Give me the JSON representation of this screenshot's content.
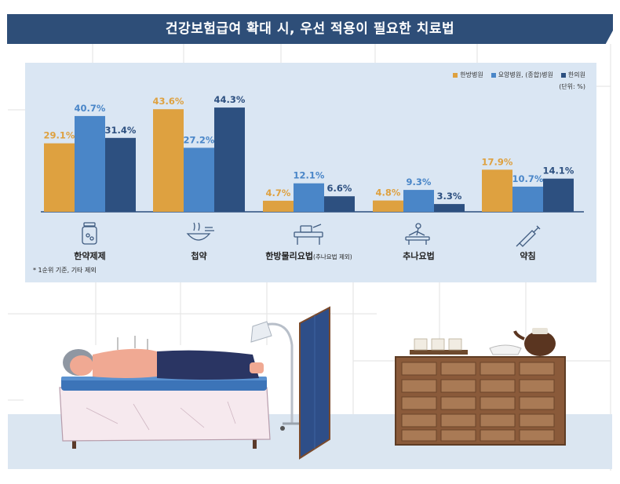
{
  "header": {
    "title": "건강보험급여 확대 시, 우선 적용이 필요한 치료법"
  },
  "legend": {
    "unit": "(단위: %)",
    "items": [
      {
        "label": "한방병원",
        "color": "#dea140"
      },
      {
        "label": "요양병원, (종합)병원",
        "color": "#4a86c8"
      },
      {
        "label": "한의원",
        "color": "#2d5080"
      }
    ]
  },
  "footnote": "* 1순위 기준, 기타 제외",
  "chart_data": {
    "type": "bar",
    "title": "건강보험급여 확대 시, 우선 적용이 필요한 치료법",
    "categories": [
      "한약제제",
      "첩약",
      "한방물리요법(추나요법 제외)",
      "추나요법",
      "약침"
    ],
    "category_labels": [
      {
        "main": "한약제제",
        "sub": ""
      },
      {
        "main": "첩약",
        "sub": ""
      },
      {
        "main": "한방물리요법",
        "sub": "(추나요법 제외)"
      },
      {
        "main": "추나요법",
        "sub": ""
      },
      {
        "main": "약침",
        "sub": ""
      }
    ],
    "series": [
      {
        "name": "한방병원",
        "color": "#dea140",
        "values": [
          29.1,
          43.6,
          4.7,
          4.8,
          17.9
        ]
      },
      {
        "name": "요양병원, (종합)병원",
        "color": "#4a86c8",
        "values": [
          40.7,
          27.2,
          12.1,
          9.3,
          10.7
        ]
      },
      {
        "name": "한의원",
        "color": "#2d5080",
        "values": [
          31.4,
          44.3,
          6.6,
          3.3,
          14.1
        ]
      }
    ],
    "unit_suffix": "%",
    "ylim": [
      0,
      50
    ],
    "grid": false,
    "legend_position": "top-right"
  },
  "icons": [
    "herbal-bottle-icon",
    "herbal-bowl-icon",
    "physio-device-icon",
    "chuna-massage-icon",
    "syringe-icon"
  ]
}
